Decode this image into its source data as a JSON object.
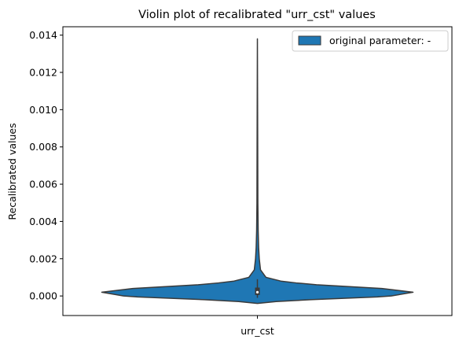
{
  "chart_data": {
    "type": "violin",
    "title": "Violin plot of recalibrated \"urr_cst\" values",
    "xlabel": "",
    "ylabel": "Recalibrated values",
    "categories": [
      "urr_cst"
    ],
    "ylim": [
      -0.00105,
      0.01445
    ],
    "yticks": [
      0.0,
      0.002,
      0.004,
      0.006,
      0.008,
      0.01,
      0.012,
      0.014
    ],
    "ytick_labels": [
      "0.000",
      "0.002",
      "0.004",
      "0.006",
      "0.008",
      "0.010",
      "0.012",
      "0.014"
    ],
    "legend": {
      "position": "top-right",
      "entries": [
        {
          "label": "original parameter: -"
        }
      ]
    },
    "grid": false,
    "violin": {
      "category": "urr_cst",
      "color": "#1f77b4",
      "edge_color": "#3a3a3a",
      "profile": [
        {
          "y": -0.0004,
          "w": 0.0
        },
        {
          "y": -0.0003,
          "w": 0.12
        },
        {
          "y": -0.0002,
          "w": 0.34
        },
        {
          "y": -5e-05,
          "w": 0.77
        },
        {
          "y": 0.0,
          "w": 0.86
        },
        {
          "y": 0.0002,
          "w": 1.0
        },
        {
          "y": 0.0004,
          "w": 0.8
        },
        {
          "y": 0.0006,
          "w": 0.38
        },
        {
          "y": 0.0007,
          "w": 0.25
        },
        {
          "y": 0.0008,
          "w": 0.15
        },
        {
          "y": 0.001,
          "w": 0.055
        },
        {
          "y": 0.0014,
          "w": 0.02
        },
        {
          "y": 0.002,
          "w": 0.012
        },
        {
          "y": 0.0026,
          "w": 0.008
        },
        {
          "y": 0.0035,
          "w": 0.005
        },
        {
          "y": 0.005,
          "w": 0.003
        },
        {
          "y": 0.008,
          "w": 0.002
        },
        {
          "y": 0.0138,
          "w": 0.0
        }
      ],
      "box": {
        "q1": 5e-05,
        "median": 0.0002,
        "q3": 0.00045,
        "whisker_low": -0.0001,
        "whisker_high": 0.0009
      }
    }
  }
}
